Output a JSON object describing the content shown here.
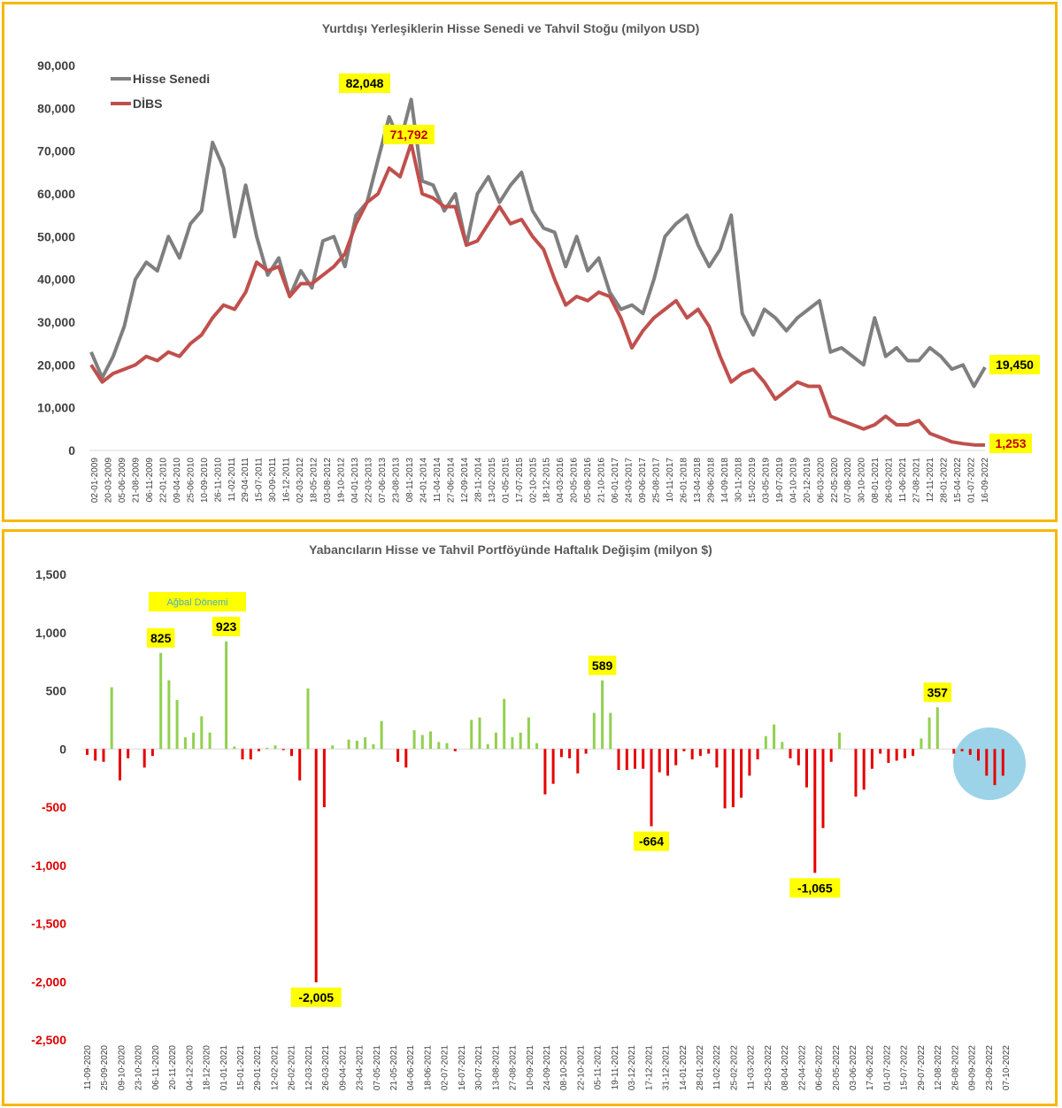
{
  "colors": {
    "frame": "#f5b800",
    "hisse": "#7f7f7f",
    "dibs": "#c0504d",
    "positive_bar": "#92d050",
    "negative_bar": "#e60000",
    "callout_bg": "#ffff00",
    "highlight_circle": "#9dd3e8"
  },
  "chart_data": [
    {
      "type": "line",
      "title": "Yurtdışı Yerleşiklerin Hisse Senedi ve Tahvil Stoğu (milyon USD)",
      "ylim": [
        0,
        90000
      ],
      "y_ticks": [
        "90,000",
        "80,000",
        "70,000",
        "60,000",
        "50,000",
        "40,000",
        "30,000",
        "20,000",
        "10,000",
        "0"
      ],
      "y_tick_values": [
        90000,
        80000,
        70000,
        60000,
        50000,
        40000,
        30000,
        20000,
        10000,
        0
      ],
      "x_ticks": [
        "02-01-2009",
        "20-03-2009",
        "05-06-2009",
        "21-08-2009",
        "06-11-2009",
        "22-01-2010",
        "09-04-2010",
        "25-06-2010",
        "10-09-2010",
        "26-11-2010",
        "11-02-2011",
        "29-04-2011",
        "15-07-2011",
        "30-09-2011",
        "16-12-2011",
        "02-03-2012",
        "18-05-2012",
        "03-08-2012",
        "19-10-2012",
        "04-01-2013",
        "22-03-2013",
        "07-06-2013",
        "23-08-2013",
        "08-11-2013",
        "24-01-2014",
        "11-04-2014",
        "27-06-2014",
        "12-09-2014",
        "28-11-2014",
        "13-02-2015",
        "01-05-2015",
        "17-07-2015",
        "02-10-2015",
        "18-12-2015",
        "04-03-2016",
        "20-05-2016",
        "05-08-2016",
        "21-10-2016",
        "06-01-2017",
        "24-03-2017",
        "09-06-2017",
        "25-08-2017",
        "10-11-2017",
        "26-01-2018",
        "13-04-2018",
        "29-06-2018",
        "14-09-2018",
        "30-11-2018",
        "15-02-2019",
        "03-05-2019",
        "19-07-2019",
        "04-10-2019",
        "20-12-2019",
        "06-03-2020",
        "22-05-2020",
        "07-08-2020",
        "30-10-2020",
        "08-01-2021",
        "26-03-2021",
        "11-06-2021",
        "27-08-2021",
        "12-11-2021",
        "28-01-2022",
        "15-04-2022",
        "01-07-2022",
        "16-09-2022"
      ],
      "legend": "top-left",
      "series": [
        {
          "name": "Hisse Senedi",
          "values": [
            23000,
            17000,
            22000,
            29000,
            40000,
            44000,
            42000,
            50000,
            45000,
            53000,
            56000,
            72000,
            66000,
            50000,
            62000,
            50000,
            41000,
            45000,
            36000,
            42000,
            38000,
            49000,
            50000,
            43000,
            55000,
            58000,
            68000,
            78000,
            72000,
            82048,
            63000,
            62000,
            56000,
            60000,
            48000,
            60000,
            64000,
            58000,
            62000,
            65000,
            56000,
            52000,
            51000,
            43000,
            50000,
            42000,
            45000,
            37000,
            33000,
            34000,
            32000,
            40000,
            50000,
            53000,
            55000,
            48000,
            43000,
            47000,
            55000,
            32000,
            27000,
            33000,
            31000,
            28000,
            31000,
            33000,
            35000,
            23000,
            24000,
            22000,
            20000,
            31000,
            22000,
            24000,
            21000,
            21000,
            24000,
            22000,
            19000,
            20000,
            15000,
            19450
          ],
          "end_value": 19450,
          "peak_value": 82048
        },
        {
          "name": "DİBS",
          "values": [
            20000,
            16000,
            18000,
            19000,
            20000,
            22000,
            21000,
            23000,
            22000,
            25000,
            27000,
            31000,
            34000,
            33000,
            37000,
            44000,
            42000,
            43000,
            36000,
            39000,
            39000,
            41000,
            43000,
            46000,
            53000,
            58000,
            60000,
            66000,
            64000,
            71792,
            60000,
            59000,
            57000,
            57000,
            48000,
            49000,
            53000,
            57000,
            53000,
            54000,
            50000,
            47000,
            40000,
            34000,
            36000,
            35000,
            37000,
            36000,
            31000,
            24000,
            28000,
            31000,
            33000,
            35000,
            31000,
            33000,
            29000,
            22000,
            16000,
            18000,
            19000,
            16000,
            12000,
            14000,
            16000,
            15000,
            15000,
            8000,
            7000,
            6000,
            5000,
            6000,
            8000,
            6000,
            6000,
            7000,
            4000,
            3000,
            2000,
            1600,
            1300,
            1253
          ],
          "end_value": 1253,
          "peak_value": 71792
        }
      ],
      "callouts": [
        "82,048",
        "71,792",
        "19,450",
        "1,253"
      ]
    },
    {
      "type": "bar",
      "title": "Yabancıların Hisse ve Tahvil Portföyünde Haftalık Değişim (milyon $)",
      "ylim": [
        -2500,
        1500
      ],
      "y_ticks": [
        "1,500",
        "1,000",
        "500",
        "0",
        "-500",
        "-1,000",
        "-1,500",
        "-2,000",
        "-2,500"
      ],
      "y_tick_values": [
        1500,
        1000,
        500,
        0,
        -500,
        -1000,
        -1500,
        -2000,
        -2500
      ],
      "x_ticks": [
        "11-09-2020",
        "25-09-2020",
        "09-10-2020",
        "23-10-2020",
        "06-11-2020",
        "20-11-2020",
        "04-12-2020",
        "18-12-2020",
        "01-01-2021",
        "15-01-2021",
        "29-01-2021",
        "12-02-2021",
        "26-02-2021",
        "12-03-2021",
        "26-03-2021",
        "09-04-2021",
        "23-04-2021",
        "07-05-2021",
        "21-05-2021",
        "04-06-2021",
        "18-06-2021",
        "02-07-2021",
        "16-07-2021",
        "30-07-2021",
        "13-08-2021",
        "27-08-2021",
        "10-09-2021",
        "24-09-2021",
        "08-10-2021",
        "22-10-2021",
        "05-11-2021",
        "19-11-2021",
        "03-12-2021",
        "17-12-2021",
        "31-12-2021",
        "14-01-2022",
        "28-01-2022",
        "11-02-2022",
        "25-02-2022",
        "11-03-2022",
        "25-03-2022",
        "08-04-2022",
        "22-04-2022",
        "06-05-2022",
        "20-05-2022",
        "03-06-2022",
        "17-06-2022",
        "01-07-2022",
        "15-07-2022",
        "29-07-2022",
        "12-08-2022",
        "26-08-2022",
        "09-09-2022",
        "23-09-2022",
        "07-10-2022"
      ],
      "values": [
        -50,
        -100,
        -110,
        530,
        -270,
        -80,
        0,
        -160,
        -60,
        825,
        590,
        420,
        100,
        140,
        280,
        140,
        0,
        923,
        20,
        -90,
        -90,
        -20,
        10,
        30,
        -10,
        -60,
        -270,
        520,
        -2005,
        -500,
        30,
        0,
        80,
        70,
        100,
        40,
        240,
        0,
        -110,
        -160,
        160,
        120,
        150,
        60,
        50,
        -20,
        0,
        250,
        270,
        40,
        140,
        430,
        100,
        140,
        270,
        50,
        -390,
        -300,
        -70,
        -80,
        -210,
        -40,
        310,
        589,
        310,
        -180,
        -180,
        -170,
        -170,
        -664,
        -200,
        -230,
        -140,
        -20,
        -90,
        -60,
        -40,
        -160,
        -510,
        -500,
        -420,
        -230,
        -90,
        110,
        210,
        60,
        -80,
        -140,
        -330,
        -1065,
        -680,
        -110,
        140,
        0,
        -410,
        -350,
        -170,
        -40,
        -120,
        -100,
        -80,
        -60,
        90,
        270,
        357,
        0,
        -40,
        -20,
        -50,
        -100,
        -230,
        -310,
        -230
      ],
      "annotations": [
        "825",
        "923",
        "-2,005",
        "589",
        "-664",
        "-1,065",
        "357"
      ],
      "period_label": "Ağbal Dönemi"
    }
  ]
}
